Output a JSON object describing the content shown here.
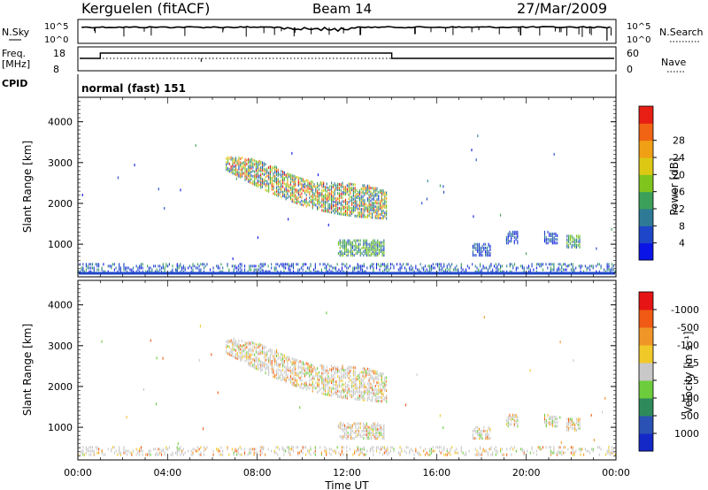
{
  "header": {
    "station": "Kerguelen (fitACF)",
    "beam": "Beam 14",
    "date": "27/Mar/2009"
  },
  "top_panels": {
    "nsky_label": "N.Sky",
    "nsky_ticks": [
      "10^5",
      "10^0"
    ],
    "nsearch_label": "N.Search",
    "nsearch_ticks": [
      "10^5",
      "10^0"
    ],
    "freq_label": "Freq.",
    "freq_unit": "[MHz]",
    "freq_ticks": [
      "18",
      "8"
    ],
    "nave_label": "Nave",
    "nave_ticks": [
      "60",
      "0"
    ],
    "cpid_label": "CPID",
    "cpid_text": "normal (fast) 151"
  },
  "chart_data": [
    {
      "type": "heatmap",
      "panel": "power",
      "ylabel": "Slant Range [km]",
      "yticks": [
        1000,
        2000,
        3000,
        4000
      ],
      "ylim": [
        200,
        4600
      ],
      "xlim": [
        0,
        24
      ],
      "colorbar": {
        "label": "Power [dB]",
        "ticks": [
          "4",
          "8",
          "12",
          "16",
          "20",
          "24",
          "28"
        ],
        "colors": [
          "#0a14e6",
          "#1e46c8",
          "#2e7a96",
          "#3ca05a",
          "#80c41e",
          "#dcc814",
          "#f0a014",
          "#f06414",
          "#e61e14"
        ]
      },
      "echo_regions": [
        {
          "t0": 6.6,
          "t1": 13.8,
          "r_top": 3100,
          "r_bottom": 1600,
          "level": "strong"
        },
        {
          "t0": 11.6,
          "t1": 13.7,
          "r_top": 1100,
          "r_bottom": 700,
          "level": "medium"
        },
        {
          "t0": 17.6,
          "t1": 18.4,
          "r_top": 1000,
          "r_bottom": 700,
          "level": "weak"
        },
        {
          "t0": 19.1,
          "t1": 19.6,
          "r_top": 1300,
          "r_bottom": 1000,
          "level": "weak"
        },
        {
          "t0": 20.8,
          "t1": 21.4,
          "r_top": 1300,
          "r_bottom": 1000,
          "level": "weak"
        },
        {
          "t0": 21.8,
          "t1": 22.4,
          "r_top": 1200,
          "r_bottom": 900,
          "level": "medium"
        },
        {
          "t0": 0.0,
          "t1": 24.0,
          "r_top": 500,
          "r_bottom": 300,
          "level": "low"
        }
      ]
    },
    {
      "type": "heatmap",
      "panel": "velocity",
      "ylabel": "Slant Range [km]",
      "yticks": [
        1000,
        2000,
        3000,
        4000
      ],
      "ylim": [
        200,
        4600
      ],
      "xlim": [
        0,
        24
      ],
      "xticks": [
        "00:00",
        "04:00",
        "08:00",
        "12:00",
        "16:00",
        "20:00",
        "00:00"
      ],
      "xlabel": "Time UT",
      "colorbar": {
        "label": "Velocity [m s⁻¹]",
        "ticks": [
          "1000",
          "500",
          "100",
          "25",
          "-25",
          "-100",
          "-500",
          "-1000"
        ],
        "colors": [
          "#1428c8",
          "#2a52b4",
          "#2e8a5a",
          "#6ccc3c",
          "#c8c8c8",
          "#f0c828",
          "#f09628",
          "#f05a14",
          "#e61414"
        ]
      }
    }
  ]
}
